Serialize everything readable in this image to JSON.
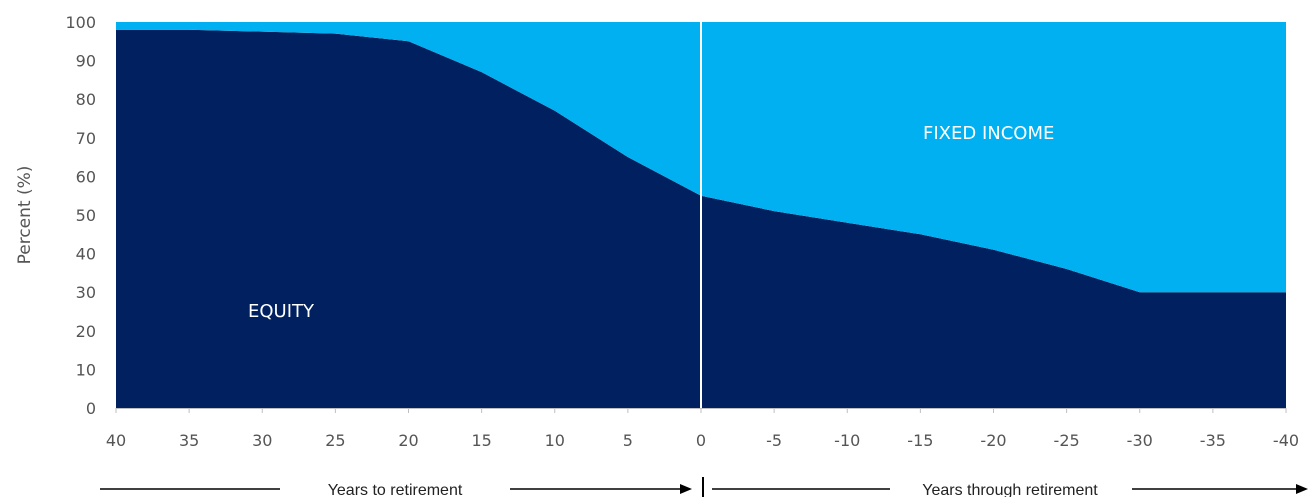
{
  "chart_data": {
    "type": "area",
    "ylabel": "Percent (%)",
    "ylim": [
      0,
      100
    ],
    "yticks": [
      0,
      10,
      20,
      30,
      40,
      50,
      60,
      70,
      80,
      90,
      100
    ],
    "x": [
      40,
      35,
      30,
      25,
      20,
      15,
      10,
      5,
      0,
      -5,
      -10,
      -15,
      -20,
      -25,
      -30,
      -35,
      -40
    ],
    "xtick_labels": [
      "40",
      "35",
      "30",
      "25",
      "20",
      "15",
      "10",
      "5",
      "0",
      "-5",
      "-10",
      "-15",
      "-20",
      "-25",
      "-30",
      "-35",
      "-40"
    ],
    "series": [
      {
        "name": "EQUITY",
        "values": [
          98,
          98,
          97.5,
          97,
          95,
          87,
          77,
          65,
          55,
          51,
          48,
          45,
          41,
          36,
          30,
          30,
          30
        ]
      },
      {
        "name": "FIXED INCOME",
        "values": [
          2,
          2,
          2.5,
          3,
          5,
          13,
          23,
          35,
          45,
          49,
          52,
          55,
          59,
          64,
          70,
          70,
          70
        ]
      }
    ],
    "stacked": true,
    "retirement_x": 0,
    "grid": false,
    "colors": {
      "equity": "#002060",
      "fixed_income": "#00b0f0",
      "divider": "#ffffff",
      "text": "#555555"
    }
  },
  "annotations": {
    "left_arrow_label": "Years to retirement",
    "right_arrow_label": "Years through retirement"
  }
}
